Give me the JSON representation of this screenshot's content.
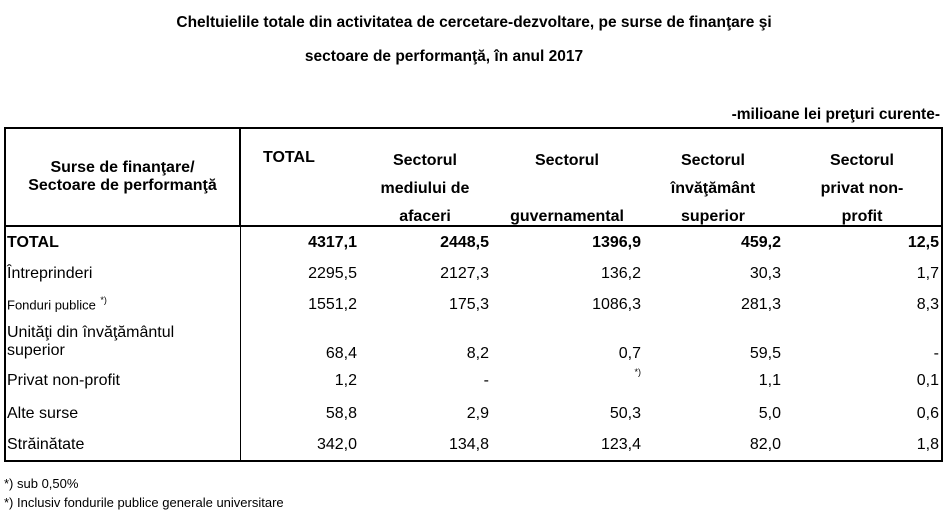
{
  "title_line1": "Cheltuielile totale din activitatea de cercetare-dezvoltare, pe surse de finanţare  şi",
  "title_line2": "sectoare de performanţă, în anul  2017",
  "unit": "-milioane lei preţuri curente-",
  "header": {
    "col0_line1": "Surse de finanţare/",
    "col0_line2": "Sectoare de performanţă",
    "total": "TOTAL",
    "col2": [
      "Sectorul",
      "mediului de",
      "afaceri"
    ],
    "col3": [
      "Sectorul",
      "",
      "guvernamental"
    ],
    "col4": [
      "Sectorul",
      "învăţământ",
      "superior"
    ],
    "col5": [
      "Sectorul",
      "privat non-",
      "profit"
    ]
  },
  "rows": [
    {
      "label": "TOTAL",
      "values": [
        "4317,1",
        "2448,5",
        "1396,9",
        "459,2",
        "12,5"
      ]
    },
    {
      "label": "Întreprinderi",
      "values": [
        "2295,5",
        "2127,3",
        "136,2",
        "30,3",
        "1,7"
      ]
    },
    {
      "label": "Fonduri publice",
      "label_sup": "*)",
      "values": [
        "1551,2",
        "175,3",
        "1086,3",
        "281,3",
        "8,3"
      ]
    },
    {
      "label_line1": "Unităţi din învăţământul",
      "label_line2": "superior",
      "values": [
        "68,4",
        "8,2",
        "0,7",
        "59,5",
        "-"
      ]
    },
    {
      "label": "Privat non-profit",
      "values": [
        "1,2",
        "-",
        "*)",
        "1,1",
        "0,1"
      ]
    },
    {
      "label": "Alte surse",
      "values": [
        "58,8",
        "2,9",
        "50,3",
        "5,0",
        "0,6"
      ]
    },
    {
      "label": "Străinătate",
      "values": [
        "342,0",
        "134,8",
        "123,4",
        "82,0",
        "1,8"
      ]
    }
  ],
  "footnotes": [
    "*) sub 0,50%",
    "*) Inclusiv fondurile publice generale universitare"
  ]
}
